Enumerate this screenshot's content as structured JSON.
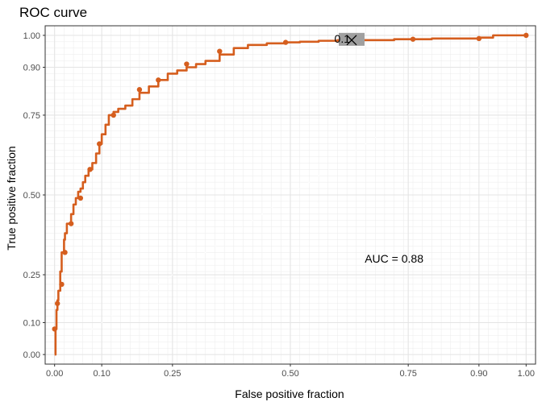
{
  "chart_data": {
    "type": "line",
    "title": "ROC curve",
    "xlabel": "False positive fraction",
    "ylabel": "True positive fraction",
    "xlim": [
      -0.02,
      1.02
    ],
    "ylim": [
      -0.03,
      1.03
    ],
    "x_ticks": [
      0.0,
      0.1,
      0.25,
      0.5,
      0.75,
      0.9,
      1.0
    ],
    "x_tick_labels": [
      "0.00",
      "0.10",
      "0.25",
      "0.50",
      "0.75",
      "0.90",
      "1.00"
    ],
    "y_ticks": [
      0.0,
      0.1,
      0.25,
      0.5,
      0.75,
      0.9,
      1.0
    ],
    "y_tick_labels": [
      "0.00",
      "0.10",
      "0.25",
      "0.50",
      "0.75",
      "0.90",
      "1.00"
    ],
    "grid": true,
    "series": [
      {
        "name": "ROC",
        "color": "#d55e1e",
        "x": [
          0.0,
          0.002,
          0.004,
          0.006,
          0.008,
          0.012,
          0.015,
          0.02,
          0.022,
          0.026,
          0.03,
          0.035,
          0.04,
          0.045,
          0.05,
          0.055,
          0.06,
          0.065,
          0.072,
          0.08,
          0.088,
          0.095,
          0.1,
          0.108,
          0.115,
          0.125,
          0.135,
          0.15,
          0.165,
          0.18,
          0.2,
          0.22,
          0.24,
          0.26,
          0.28,
          0.3,
          0.32,
          0.35,
          0.38,
          0.41,
          0.45,
          0.49,
          0.52,
          0.56,
          0.6,
          0.64,
          0.68,
          0.72,
          0.76,
          0.8,
          0.85,
          0.9,
          0.93,
          0.96,
          1.0
        ],
        "y": [
          0.0,
          0.08,
          0.14,
          0.17,
          0.2,
          0.26,
          0.32,
          0.36,
          0.38,
          0.41,
          0.41,
          0.44,
          0.47,
          0.49,
          0.51,
          0.52,
          0.54,
          0.56,
          0.58,
          0.6,
          0.63,
          0.66,
          0.69,
          0.72,
          0.75,
          0.76,
          0.77,
          0.78,
          0.8,
          0.82,
          0.84,
          0.86,
          0.88,
          0.89,
          0.9,
          0.91,
          0.92,
          0.94,
          0.96,
          0.97,
          0.975,
          0.978,
          0.98,
          0.983,
          0.985,
          0.985,
          0.985,
          0.988,
          0.988,
          0.99,
          0.99,
          0.993,
          1.0,
          1.0,
          1.0
        ],
        "markers_x": [
          0.0,
          0.006,
          0.015,
          0.022,
          0.035,
          0.055,
          0.075,
          0.095,
          0.125,
          0.18,
          0.22,
          0.28,
          0.35,
          0.49,
          0.76,
          0.9,
          1.0
        ],
        "markers_y": [
          0.08,
          0.16,
          0.22,
          0.32,
          0.41,
          0.49,
          0.58,
          0.66,
          0.75,
          0.83,
          0.86,
          0.91,
          0.95,
          0.978,
          0.988,
          0.99,
          1.0
        ]
      }
    ],
    "cutoff": {
      "label": "0.1",
      "x": 0.63,
      "y": 0.985
    },
    "annotation": {
      "text": "AUC = 0.88",
      "x": 0.72,
      "y": 0.3
    }
  }
}
